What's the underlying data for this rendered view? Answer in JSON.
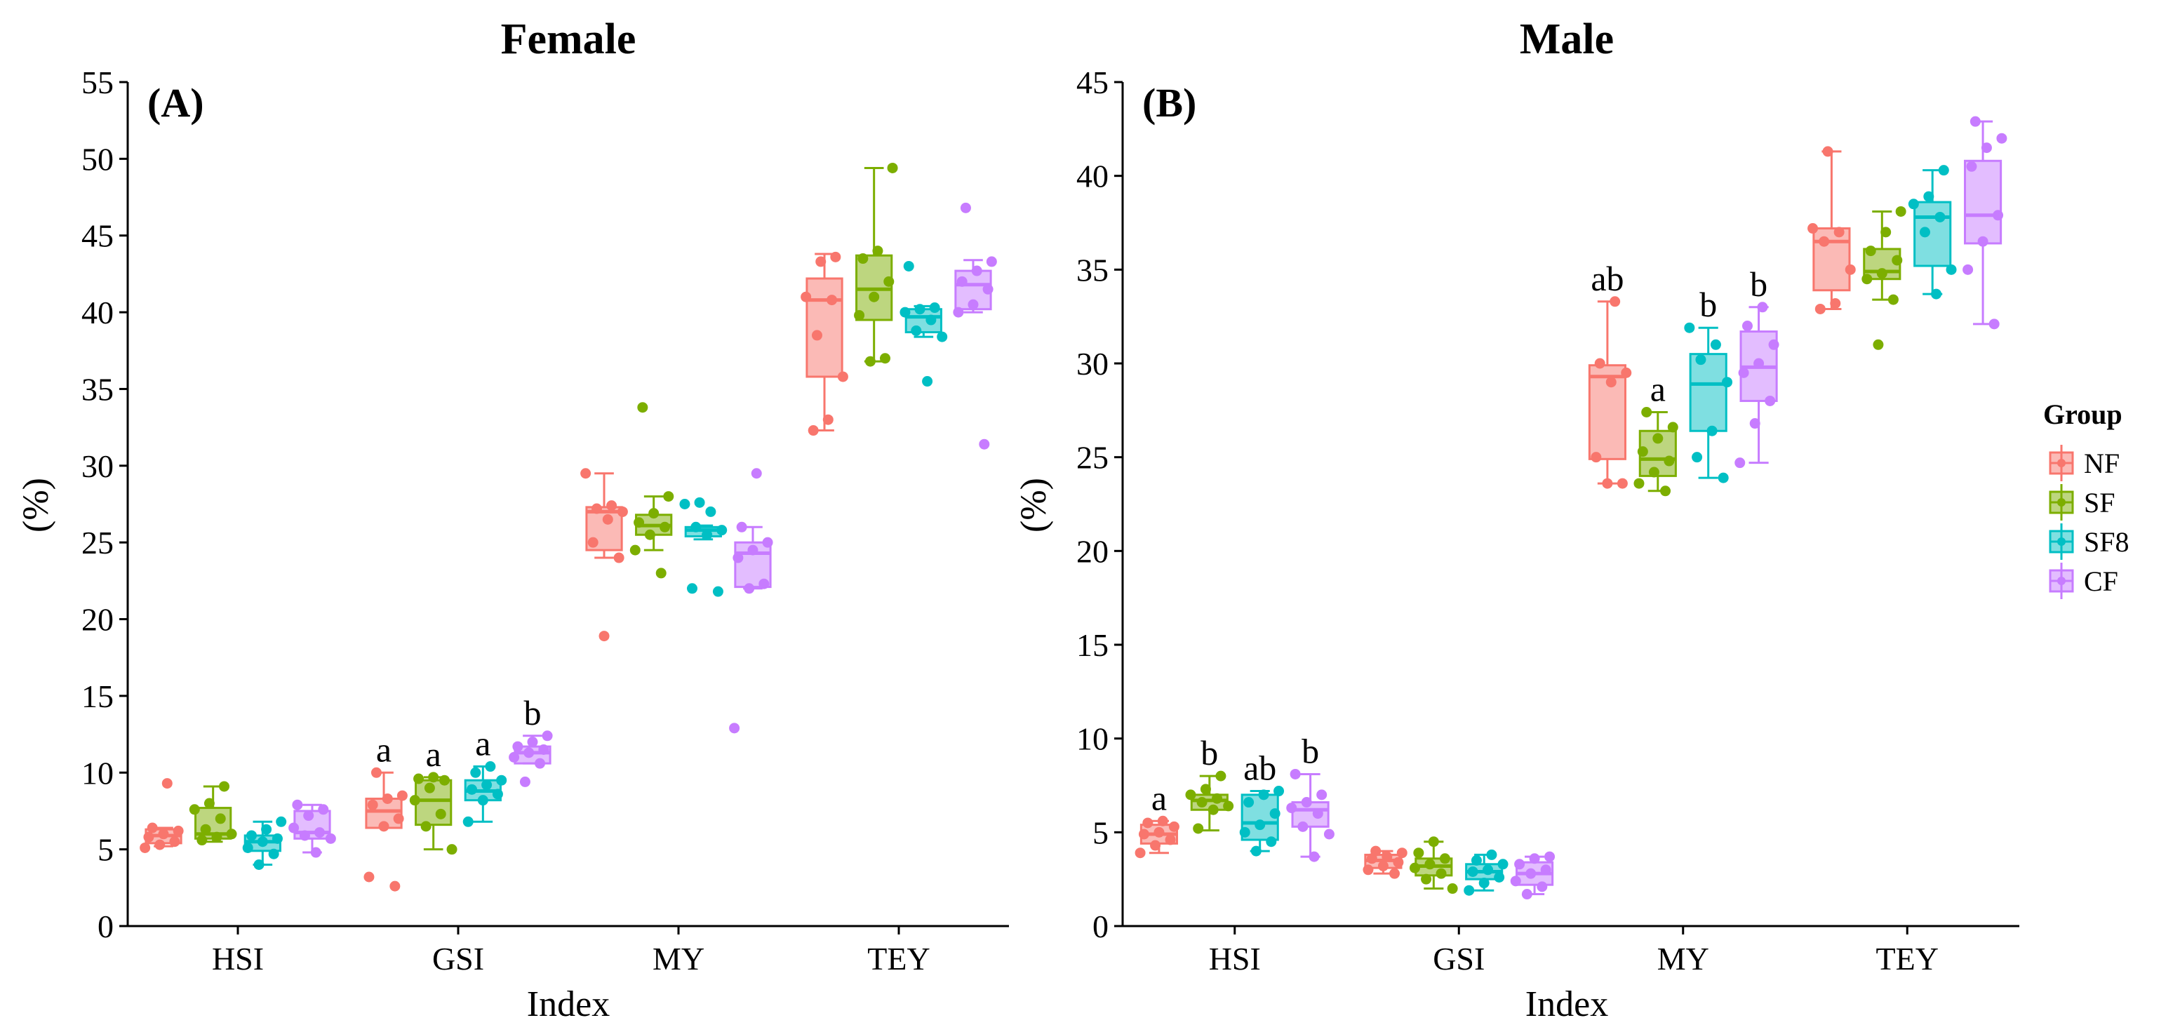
{
  "colors": {
    "groups": [
      "#F8766D",
      "#7CAE00",
      "#00BFC4",
      "#C77CFF"
    ],
    "axis": "#000000",
    "background": "#ffffff"
  },
  "legend": {
    "title": "Group",
    "entries": [
      "NF",
      "SF",
      "SF8",
      "CF"
    ],
    "position": "right"
  },
  "chart_data": [
    {
      "type": "boxplot",
      "title": "Female",
      "panel_label": "(A)",
      "xlabel": "Index",
      "ylabel": "(%)",
      "categories": [
        "HSI",
        "GSI",
        "MY",
        "TEY"
      ],
      "groups": [
        "NF",
        "SF",
        "SF8",
        "CF"
      ],
      "ylim": [
        0,
        55
      ],
      "yticks": [
        0,
        5,
        10,
        15,
        20,
        25,
        30,
        35,
        40,
        45,
        50,
        55
      ],
      "boxes": [
        {
          "category": "HSI",
          "group": "NF",
          "whisker_low": 5.2,
          "q1": 5.4,
          "median": 5.9,
          "q3": 6.3,
          "whisker_high": 6.4,
          "points": [
            5.1,
            5.3,
            5.5,
            5.8,
            6.0,
            6.2,
            6.4,
            9.3
          ],
          "sig": ""
        },
        {
          "category": "HSI",
          "group": "SF",
          "whisker_low": 5.5,
          "q1": 5.7,
          "median": 6.0,
          "q3": 7.7,
          "whisker_high": 9.1,
          "points": [
            5.6,
            5.8,
            6.0,
            6.3,
            7.0,
            7.6,
            8.0,
            9.1
          ],
          "sig": ""
        },
        {
          "category": "HSI",
          "group": "SF8",
          "whisker_low": 4.0,
          "q1": 4.9,
          "median": 5.5,
          "q3": 5.9,
          "whisker_high": 6.8,
          "points": [
            4.0,
            4.7,
            5.1,
            5.5,
            5.7,
            5.9,
            6.3,
            6.8
          ],
          "sig": ""
        },
        {
          "category": "HSI",
          "group": "CF",
          "whisker_low": 4.8,
          "q1": 5.7,
          "median": 6.1,
          "q3": 7.5,
          "whisker_high": 7.9,
          "points": [
            4.8,
            5.7,
            5.9,
            6.1,
            6.4,
            7.2,
            7.6,
            7.9
          ],
          "sig": ""
        },
        {
          "category": "GSI",
          "group": "NF",
          "whisker_low": 6.4,
          "q1": 6.4,
          "median": 7.5,
          "q3": 8.3,
          "whisker_high": 10.0,
          "points": [
            2.6,
            3.2,
            6.5,
            7.0,
            7.9,
            8.3,
            8.5,
            10.0
          ],
          "sig": "a"
        },
        {
          "category": "GSI",
          "group": "SF",
          "whisker_low": 5.0,
          "q1": 6.6,
          "median": 8.2,
          "q3": 9.5,
          "whisker_high": 9.7,
          "points": [
            5.0,
            6.5,
            7.3,
            8.2,
            9.0,
            9.5,
            9.6,
            9.7
          ],
          "sig": "a"
        },
        {
          "category": "GSI",
          "group": "SF8",
          "whisker_low": 6.8,
          "q1": 8.2,
          "median": 8.8,
          "q3": 9.5,
          "whisker_high": 10.4,
          "points": [
            6.8,
            8.2,
            8.6,
            8.9,
            9.2,
            9.5,
            10.0,
            10.4
          ],
          "sig": "a"
        },
        {
          "category": "GSI",
          "group": "CF",
          "whisker_low": 10.6,
          "q1": 10.6,
          "median": 11.3,
          "q3": 11.7,
          "whisker_high": 12.4,
          "points": [
            9.4,
            10.6,
            11.0,
            11.3,
            11.5,
            11.7,
            12.0,
            12.4
          ],
          "sig": "b"
        },
        {
          "category": "MY",
          "group": "NF",
          "whisker_low": 24.0,
          "q1": 24.5,
          "median": 27.0,
          "q3": 27.3,
          "whisker_high": 29.5,
          "points": [
            18.9,
            24.0,
            25.0,
            26.5,
            27.0,
            27.2,
            27.4,
            29.5
          ],
          "sig": ""
        },
        {
          "category": "MY",
          "group": "SF",
          "whisker_low": 24.5,
          "q1": 25.5,
          "median": 26.1,
          "q3": 26.8,
          "whisker_high": 28.0,
          "points": [
            23.0,
            24.5,
            25.5,
            26.0,
            26.3,
            26.9,
            28.0,
            33.8
          ],
          "sig": ""
        },
        {
          "category": "MY",
          "group": "SF8",
          "whisker_low": 25.2,
          "q1": 25.4,
          "median": 25.8,
          "q3": 26.0,
          "whisker_high": 26.1,
          "points": [
            21.8,
            22.0,
            25.5,
            25.8,
            26.0,
            27.0,
            27.5,
            27.6
          ],
          "sig": ""
        },
        {
          "category": "MY",
          "group": "CF",
          "whisker_low": 22.0,
          "q1": 22.1,
          "median": 24.3,
          "q3": 25.0,
          "whisker_high": 26.0,
          "points": [
            12.9,
            22.0,
            22.3,
            24.0,
            24.5,
            25.0,
            26.0,
            29.5
          ],
          "sig": ""
        },
        {
          "category": "TEY",
          "group": "NF",
          "whisker_low": 32.3,
          "q1": 35.8,
          "median": 40.8,
          "q3": 42.2,
          "whisker_high": 43.8,
          "points": [
            32.3,
            33.0,
            35.8,
            38.5,
            40.8,
            41.0,
            43.3,
            43.6
          ],
          "sig": ""
        },
        {
          "category": "TEY",
          "group": "SF",
          "whisker_low": 36.8,
          "q1": 39.5,
          "median": 41.5,
          "q3": 43.7,
          "whisker_high": 49.4,
          "points": [
            36.8,
            37.0,
            39.8,
            41.0,
            42.0,
            43.5,
            44.0,
            49.4
          ],
          "sig": ""
        },
        {
          "category": "TEY",
          "group": "SF8",
          "whisker_low": 38.4,
          "q1": 38.7,
          "median": 39.7,
          "q3": 40.2,
          "whisker_high": 40.4,
          "points": [
            35.5,
            38.4,
            38.8,
            39.5,
            40.0,
            40.2,
            40.3,
            43.0
          ],
          "sig": ""
        },
        {
          "category": "TEY",
          "group": "CF",
          "whisker_low": 40.0,
          "q1": 40.2,
          "median": 41.8,
          "q3": 42.7,
          "whisker_high": 43.4,
          "points": [
            31.4,
            40.0,
            40.5,
            41.5,
            42.0,
            42.7,
            43.3,
            46.8
          ],
          "sig": ""
        }
      ]
    },
    {
      "type": "boxplot",
      "title": "Male",
      "panel_label": "(B)",
      "xlabel": "Index",
      "ylabel": "(%)",
      "categories": [
        "HSI",
        "GSI",
        "MY",
        "TEY"
      ],
      "groups": [
        "NF",
        "SF",
        "SF8",
        "CF"
      ],
      "ylim": [
        0,
        45
      ],
      "yticks": [
        0,
        5,
        10,
        15,
        20,
        25,
        30,
        35,
        40,
        45
      ],
      "boxes": [
        {
          "category": "HSI",
          "group": "NF",
          "whisker_low": 3.9,
          "q1": 4.4,
          "median": 4.9,
          "q3": 5.4,
          "whisker_high": 5.6,
          "points": [
            3.9,
            4.3,
            4.6,
            4.9,
            5.0,
            5.3,
            5.5,
            5.6
          ],
          "sig": "a"
        },
        {
          "category": "HSI",
          "group": "SF",
          "whisker_low": 5.1,
          "q1": 6.2,
          "median": 6.7,
          "q3": 7.0,
          "whisker_high": 8.0,
          "points": [
            5.2,
            6.2,
            6.4,
            6.6,
            6.8,
            7.0,
            7.3,
            8.0
          ],
          "sig": "b"
        },
        {
          "category": "HSI",
          "group": "SF8",
          "whisker_low": 4.0,
          "q1": 4.6,
          "median": 5.5,
          "q3": 7.0,
          "whisker_high": 7.2,
          "points": [
            4.0,
            4.5,
            5.0,
            5.4,
            6.0,
            6.6,
            7.0,
            7.2
          ],
          "sig": "ab"
        },
        {
          "category": "HSI",
          "group": "CF",
          "whisker_low": 3.7,
          "q1": 5.3,
          "median": 6.2,
          "q3": 6.6,
          "whisker_high": 8.1,
          "points": [
            3.7,
            4.9,
            5.3,
            6.0,
            6.3,
            6.6,
            7.0,
            8.1
          ],
          "sig": "b"
        },
        {
          "category": "GSI",
          "group": "NF",
          "whisker_low": 2.8,
          "q1": 3.1,
          "median": 3.5,
          "q3": 3.8,
          "whisker_high": 4.0,
          "points": [
            2.8,
            3.0,
            3.2,
            3.4,
            3.6,
            3.7,
            3.9,
            4.0
          ],
          "sig": ""
        },
        {
          "category": "GSI",
          "group": "SF",
          "whisker_low": 2.0,
          "q1": 2.7,
          "median": 3.2,
          "q3": 3.6,
          "whisker_high": 4.5,
          "points": [
            2.0,
            2.5,
            2.8,
            3.1,
            3.3,
            3.6,
            3.9,
            4.5
          ],
          "sig": ""
        },
        {
          "category": "GSI",
          "group": "SF8",
          "whisker_low": 1.9,
          "q1": 2.5,
          "median": 2.9,
          "q3": 3.3,
          "whisker_high": 3.8,
          "points": [
            1.9,
            2.3,
            2.6,
            2.9,
            3.0,
            3.3,
            3.5,
            3.8
          ],
          "sig": ""
        },
        {
          "category": "GSI",
          "group": "CF",
          "whisker_low": 1.7,
          "q1": 2.2,
          "median": 2.8,
          "q3": 3.4,
          "whisker_high": 3.7,
          "points": [
            1.7,
            2.1,
            2.4,
            2.8,
            3.0,
            3.3,
            3.6,
            3.7
          ],
          "sig": ""
        },
        {
          "category": "MY",
          "group": "NF",
          "whisker_low": 23.6,
          "q1": 24.9,
          "median": 29.3,
          "q3": 29.9,
          "whisker_high": 33.3,
          "points": [
            23.6,
            23.6,
            25.0,
            29.0,
            29.5,
            30.0,
            33.3
          ],
          "sig": "ab"
        },
        {
          "category": "MY",
          "group": "SF",
          "whisker_low": 23.2,
          "q1": 24.0,
          "median": 24.9,
          "q3": 26.4,
          "whisker_high": 27.4,
          "points": [
            23.2,
            23.6,
            24.2,
            24.8,
            25.3,
            26.0,
            26.6,
            27.4
          ],
          "sig": "a"
        },
        {
          "category": "MY",
          "group": "SF8",
          "whisker_low": 23.9,
          "q1": 26.4,
          "median": 28.9,
          "q3": 30.5,
          "whisker_high": 31.9,
          "points": [
            23.9,
            25.0,
            26.4,
            29.0,
            30.2,
            31.0,
            31.9
          ],
          "sig": "b"
        },
        {
          "category": "MY",
          "group": "CF",
          "whisker_low": 24.7,
          "q1": 28.0,
          "median": 29.8,
          "q3": 31.7,
          "whisker_high": 33.0,
          "points": [
            24.7,
            26.8,
            28.0,
            29.5,
            30.0,
            31.0,
            32.0,
            33.0
          ],
          "sig": "b"
        },
        {
          "category": "TEY",
          "group": "NF",
          "whisker_low": 32.9,
          "q1": 33.9,
          "median": 36.5,
          "q3": 37.2,
          "whisker_high": 41.3,
          "points": [
            32.9,
            33.2,
            35.0,
            36.5,
            37.0,
            37.2,
            41.3
          ],
          "sig": ""
        },
        {
          "category": "TEY",
          "group": "SF",
          "whisker_low": 33.4,
          "q1": 34.5,
          "median": 34.9,
          "q3": 36.1,
          "whisker_high": 38.1,
          "points": [
            31.0,
            33.4,
            34.5,
            34.8,
            35.5,
            36.0,
            37.0,
            38.1
          ],
          "sig": ""
        },
        {
          "category": "TEY",
          "group": "SF8",
          "whisker_low": 33.7,
          "q1": 35.2,
          "median": 37.8,
          "q3": 38.6,
          "whisker_high": 40.3,
          "points": [
            33.7,
            35.0,
            37.0,
            37.8,
            38.5,
            38.9,
            40.3
          ],
          "sig": ""
        },
        {
          "category": "TEY",
          "group": "CF",
          "whisker_low": 32.1,
          "q1": 36.4,
          "median": 37.9,
          "q3": 40.8,
          "whisker_high": 42.9,
          "points": [
            32.1,
            35.0,
            36.5,
            37.9,
            40.5,
            41.5,
            42.0,
            42.9
          ],
          "sig": ""
        }
      ]
    }
  ]
}
